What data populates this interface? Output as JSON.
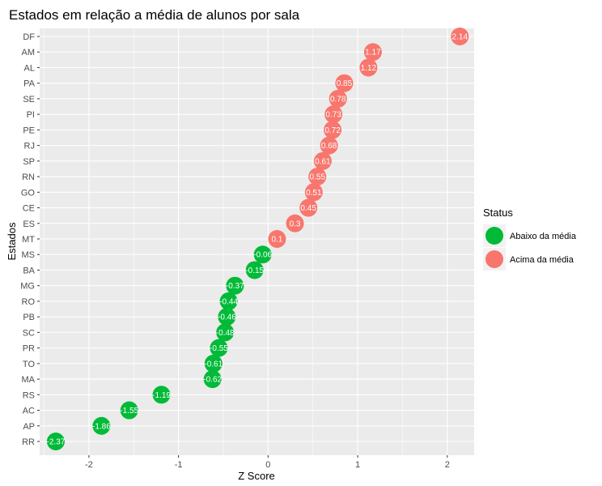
{
  "chart_data": {
    "type": "scatter",
    "title": "Estados em relação a média de alunos por sala",
    "xlabel": "Z Score",
    "ylabel": "Estados",
    "xlim": [
      -2.55,
      2.3
    ],
    "x_ticks": [
      -2,
      -1,
      0,
      1,
      2
    ],
    "x_tick_labels": [
      "-2",
      "-1",
      "0",
      "1",
      "2"
    ],
    "grid": true,
    "legend": {
      "title": "Status",
      "position": "right",
      "entries": [
        {
          "name": "Abaixo da média",
          "color": "#00ba38"
        },
        {
          "name": "Acima da média",
          "color": "#f8766d"
        }
      ]
    },
    "points": [
      {
        "state": "RR",
        "x": -2.37,
        "label": "-2.37",
        "status": "Abaixo da média"
      },
      {
        "state": "AP",
        "x": -1.86,
        "label": "-1.86",
        "status": "Abaixo da média"
      },
      {
        "state": "AC",
        "x": -1.55,
        "label": "-1.55",
        "status": "Abaixo da média"
      },
      {
        "state": "RS",
        "x": -1.19,
        "label": "-1.19",
        "status": "Abaixo da média"
      },
      {
        "state": "MA",
        "x": -0.62,
        "label": "-0.62",
        "status": "Abaixo da média"
      },
      {
        "state": "TO",
        "x": -0.61,
        "label": "-0.61",
        "status": "Abaixo da média"
      },
      {
        "state": "PR",
        "x": -0.55,
        "label": "-0.55",
        "status": "Abaixo da média"
      },
      {
        "state": "SC",
        "x": -0.48,
        "label": "-0.48",
        "status": "Abaixo da média"
      },
      {
        "state": "PB",
        "x": -0.46,
        "label": "-0.46",
        "status": "Abaixo da média"
      },
      {
        "state": "RO",
        "x": -0.44,
        "label": "-0.44",
        "status": "Abaixo da média"
      },
      {
        "state": "MG",
        "x": -0.37,
        "label": "-0.37",
        "status": "Abaixo da média"
      },
      {
        "state": "BA",
        "x": -0.15,
        "label": "-0.15",
        "status": "Abaixo da média"
      },
      {
        "state": "MS",
        "x": -0.06,
        "label": "-0.06",
        "status": "Abaixo da média"
      },
      {
        "state": "MT",
        "x": 0.1,
        "label": "0.1",
        "status": "Acima da média"
      },
      {
        "state": "ES",
        "x": 0.3,
        "label": "0.3",
        "status": "Acima da média"
      },
      {
        "state": "CE",
        "x": 0.45,
        "label": "0.45",
        "status": "Acima da média"
      },
      {
        "state": "GO",
        "x": 0.51,
        "label": "0.51",
        "status": "Acima da média"
      },
      {
        "state": "RN",
        "x": 0.55,
        "label": "0.55",
        "status": "Acima da média"
      },
      {
        "state": "SP",
        "x": 0.61,
        "label": "0.61",
        "status": "Acima da média"
      },
      {
        "state": "RJ",
        "x": 0.68,
        "label": "0.68",
        "status": "Acima da média"
      },
      {
        "state": "PE",
        "x": 0.72,
        "label": "0.72",
        "status": "Acima da média"
      },
      {
        "state": "PI",
        "x": 0.73,
        "label": "0.73",
        "status": "Acima da média"
      },
      {
        "state": "SE",
        "x": 0.78,
        "label": "0.78",
        "status": "Acima da média"
      },
      {
        "state": "PA",
        "x": 0.85,
        "label": "0.85",
        "status": "Acima da média"
      },
      {
        "state": "AL",
        "x": 1.12,
        "label": "1.12",
        "status": "Acima da média"
      },
      {
        "state": "AM",
        "x": 1.17,
        "label": "1.17",
        "status": "Acima da média"
      },
      {
        "state": "DF",
        "x": 2.14,
        "label": "2.14",
        "status": "Acima da média"
      }
    ]
  }
}
